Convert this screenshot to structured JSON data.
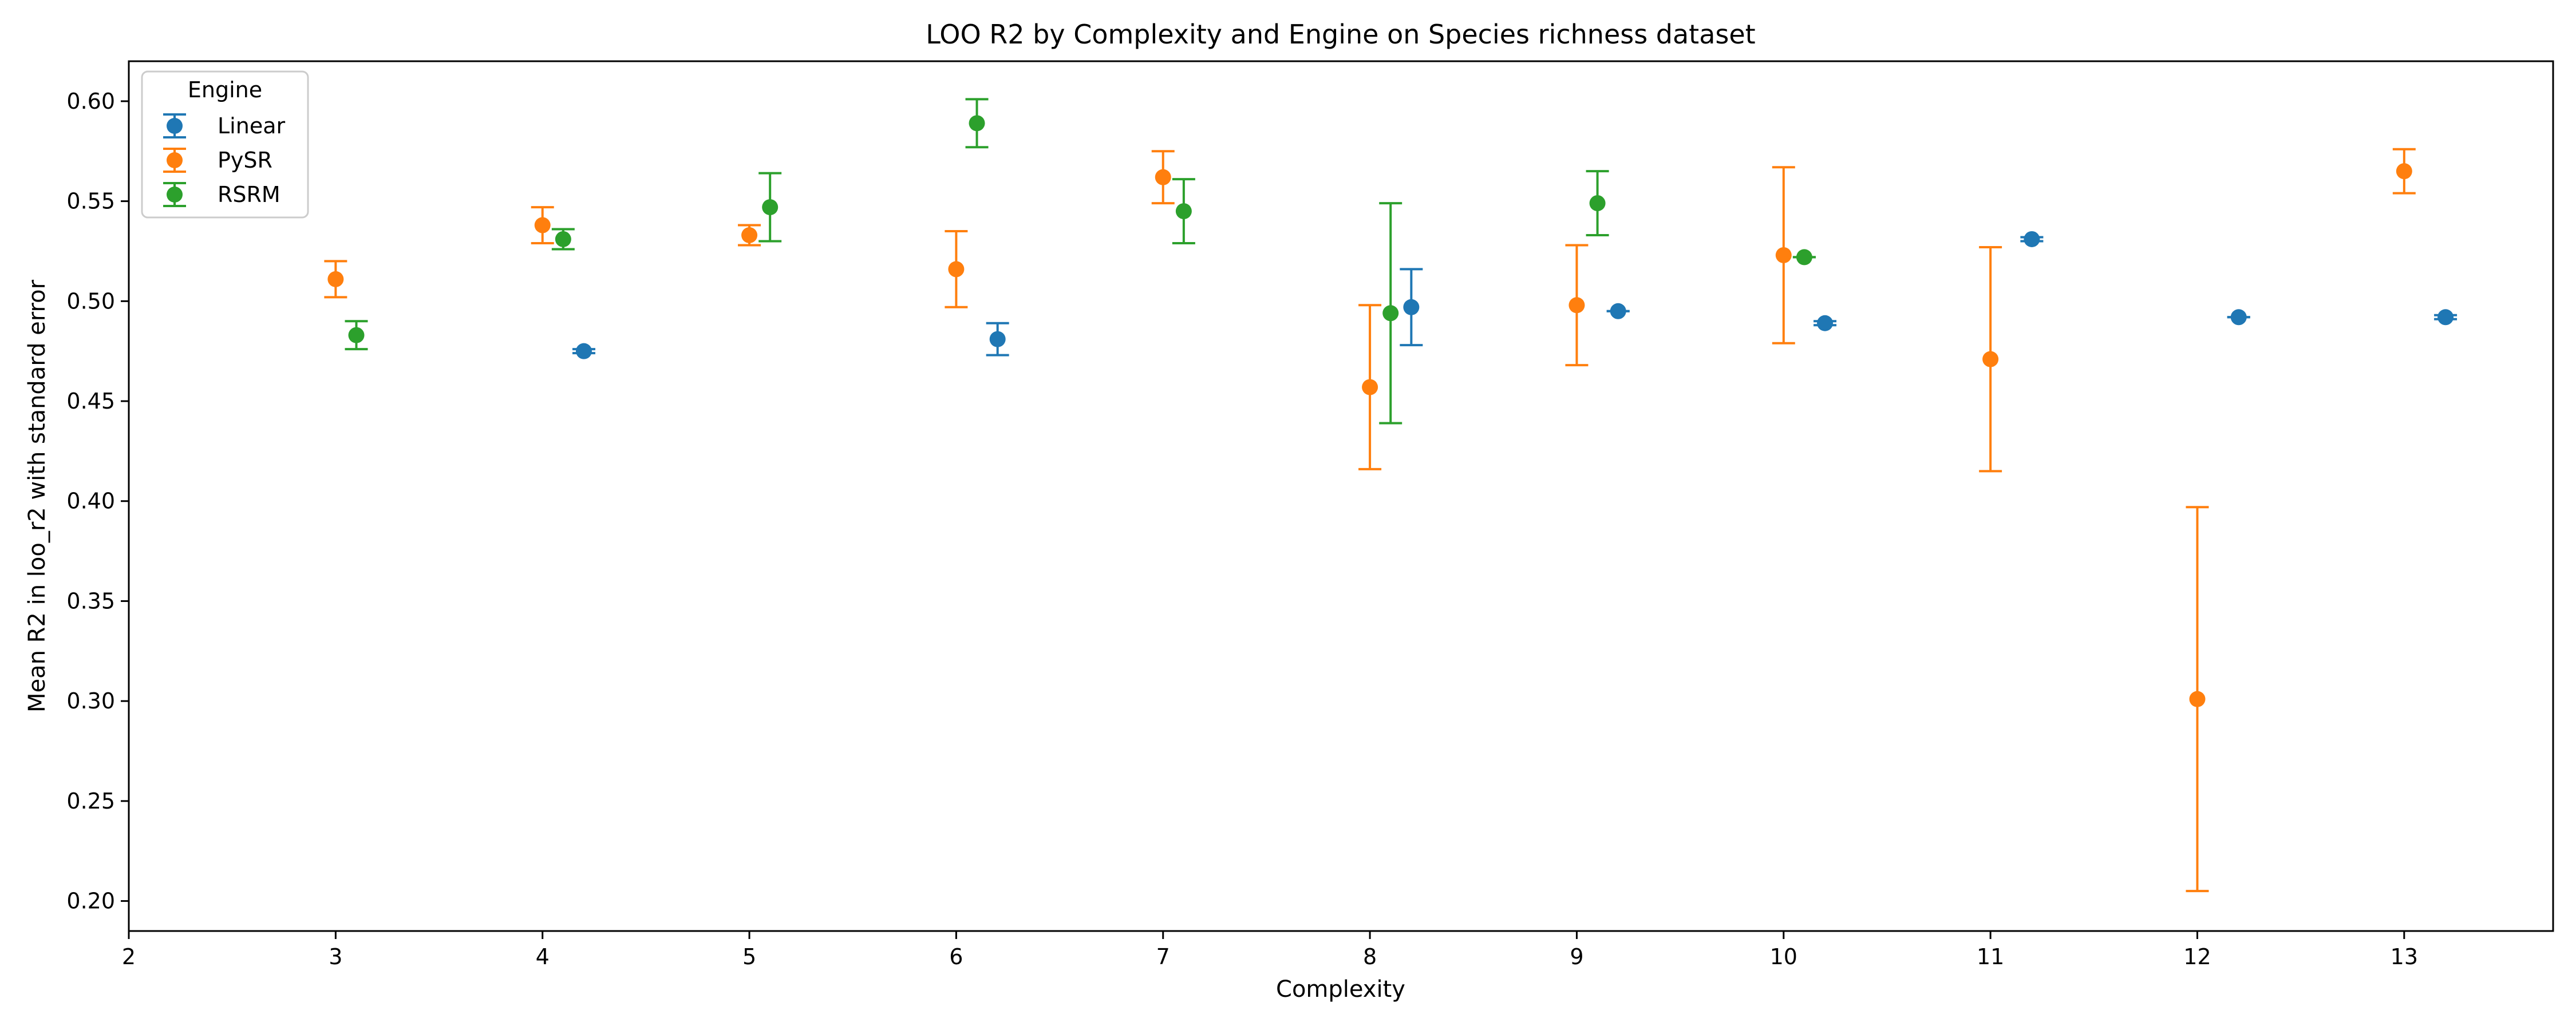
{
  "chart_data": {
    "type": "scatter",
    "title": "LOO R2 by Complexity and Engine on Species richness dataset",
    "xlabel": "Complexity",
    "ylabel": "Mean R2 in loo_r2 with standard error",
    "xlim": [
      2,
      13.72
    ],
    "ylim": [
      0.185,
      0.62
    ],
    "xticks": [
      2,
      3,
      4,
      5,
      6,
      7,
      8,
      9,
      10,
      11,
      12,
      13
    ],
    "yticks": [
      0.2,
      0.25,
      0.3,
      0.35,
      0.4,
      0.45,
      0.5,
      0.55,
      0.6
    ],
    "grid": false,
    "legend": {
      "title": "Engine",
      "position": "top-left"
    },
    "series": [
      {
        "name": "Linear",
        "color": "#1f77b4",
        "points": [
          {
            "x": 4.2,
            "y": 0.475,
            "err": 0.001
          },
          {
            "x": 6.2,
            "y": 0.481,
            "err": 0.008
          },
          {
            "x": 8.2,
            "y": 0.497,
            "err": 0.019
          },
          {
            "x": 9.2,
            "y": 0.495,
            "err": 0.0
          },
          {
            "x": 10.2,
            "y": 0.489,
            "err": 0.001
          },
          {
            "x": 11.2,
            "y": 0.531,
            "err": 0.001
          },
          {
            "x": 12.2,
            "y": 0.492,
            "err": 0.0
          },
          {
            "x": 13.2,
            "y": 0.492,
            "err": 0.001
          }
        ]
      },
      {
        "name": "PySR",
        "color": "#ff7f0e",
        "points": [
          {
            "x": 3,
            "y": 0.511,
            "err": 0.009
          },
          {
            "x": 4,
            "y": 0.538,
            "err": 0.009
          },
          {
            "x": 5,
            "y": 0.533,
            "err": 0.005
          },
          {
            "x": 6,
            "y": 0.516,
            "err": 0.019
          },
          {
            "x": 7,
            "y": 0.562,
            "err": 0.013
          },
          {
            "x": 8,
            "y": 0.457,
            "err": 0.041
          },
          {
            "x": 9,
            "y": 0.498,
            "err": 0.03
          },
          {
            "x": 10,
            "y": 0.523,
            "err": 0.044
          },
          {
            "x": 11,
            "y": 0.471,
            "err": 0.056
          },
          {
            "x": 12,
            "y": 0.301,
            "err": 0.096
          },
          {
            "x": 13,
            "y": 0.565,
            "err": 0.011
          }
        ]
      },
      {
        "name": "RSRM",
        "color": "#2ca02c",
        "points": [
          {
            "x": 3.1,
            "y": 0.483,
            "err": 0.007
          },
          {
            "x": 4.1,
            "y": 0.531,
            "err": 0.005
          },
          {
            "x": 5.1,
            "y": 0.547,
            "err": 0.017
          },
          {
            "x": 6.1,
            "y": 0.589,
            "err": 0.012
          },
          {
            "x": 7.1,
            "y": 0.545,
            "err": 0.016
          },
          {
            "x": 8.1,
            "y": 0.494,
            "err": 0.055
          },
          {
            "x": 9.1,
            "y": 0.549,
            "err": 0.016
          },
          {
            "x": 10.1,
            "y": 0.522,
            "err": 0.0
          }
        ]
      }
    ]
  }
}
